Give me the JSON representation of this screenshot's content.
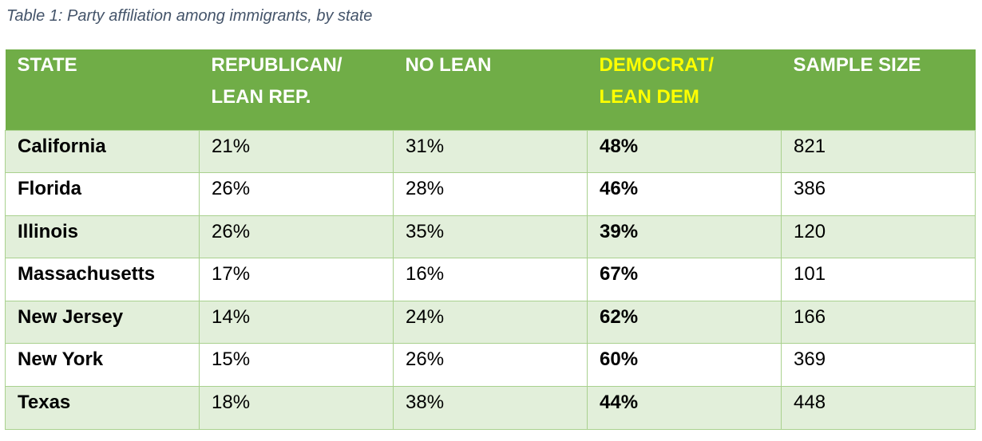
{
  "caption": "Table 1: Party affiliation among immigrants, by state",
  "colors": {
    "header_bg": "#70ad47",
    "header_text": "#ffffff",
    "header_dem_text": "#ffff00",
    "band_row": "#e2efda",
    "plain_row": "#ffffff",
    "grid": "#a9d18e",
    "caption_text": "#44546a"
  },
  "table": {
    "headers": {
      "state": "STATE",
      "rep": "REPUBLICAN/ LEAN REP.",
      "no_lean": "NO LEAN",
      "dem": "DEMOCRAT/ LEAN DEM",
      "sample": "SAMPLE SIZE"
    },
    "rows": [
      {
        "state": "California",
        "rep": "21%",
        "no_lean": "31%",
        "dem": "48%",
        "sample": "821"
      },
      {
        "state": "Florida",
        "rep": "26%",
        "no_lean": "28%",
        "dem": "46%",
        "sample": "386"
      },
      {
        "state": "Illinois",
        "rep": "26%",
        "no_lean": "35%",
        "dem": "39%",
        "sample": "120"
      },
      {
        "state": "Massachusetts",
        "rep": "17%",
        "no_lean": "16%",
        "dem": "67%",
        "sample": "101"
      },
      {
        "state": "New Jersey",
        "rep": "14%",
        "no_lean": "24%",
        "dem": "62%",
        "sample": "166"
      },
      {
        "state": "New York",
        "rep": "15%",
        "no_lean": "26%",
        "dem": "60%",
        "sample": "369"
      },
      {
        "state": "Texas",
        "rep": "18%",
        "no_lean": "38%",
        "dem": "44%",
        "sample": "448"
      }
    ]
  }
}
